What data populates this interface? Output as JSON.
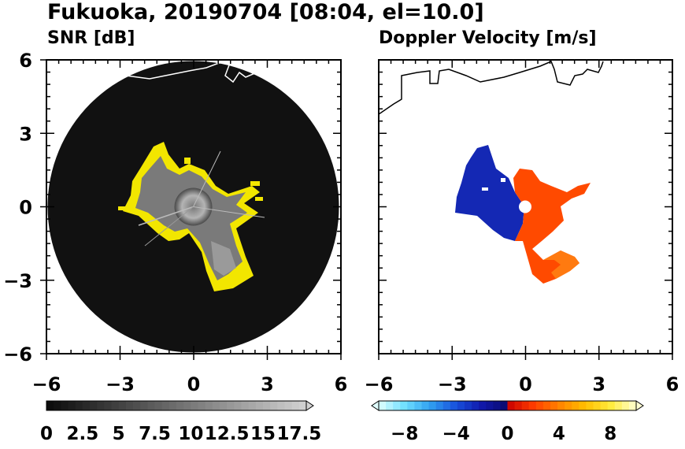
{
  "title": "Fukuoka, 20190704 [08:04, el=10.0]",
  "colors": {
    "snr_echo": "#f2e600",
    "velocity_toward": "#1428b4",
    "velocity_away": "#ff4a00",
    "background_disc": "#111111"
  },
  "chart_data": [
    {
      "type": "heatmap",
      "subtitle": "SNR [dB]",
      "xlim": [
        -6,
        6
      ],
      "ylim": [
        -6,
        6
      ],
      "xticks": [
        "−6",
        "−3",
        "0",
        "3",
        "6"
      ],
      "yticks": [
        "6",
        "3",
        "0",
        "−3",
        "−6"
      ],
      "colorbar": {
        "range": [
          0,
          18
        ],
        "extend": "max",
        "tick_labels": [
          "0",
          "2.5",
          "5",
          "7.5",
          "10",
          "12.5",
          "15",
          "17.5"
        ],
        "tick_values": [
          0,
          2.5,
          5,
          7.5,
          10,
          12.5,
          15,
          17.5
        ]
      },
      "echo_core_center": [
        0,
        0
      ],
      "echo_core_radius": 1.3
    },
    {
      "type": "heatmap",
      "subtitle": "Doppler Velocity [m/s]",
      "xlim": [
        -6,
        6
      ],
      "ylim": [
        -6,
        6
      ],
      "xticks": [
        "−6",
        "−3",
        "0",
        "3",
        "6"
      ],
      "colorbar": {
        "range": [
          -10,
          10
        ],
        "extend": "both",
        "tick_labels": [
          "−8",
          "−4",
          "0",
          "4",
          "8"
        ],
        "tick_values": [
          -8,
          -4,
          0,
          4,
          8
        ]
      },
      "echo_core_center": [
        0,
        0
      ]
    }
  ]
}
